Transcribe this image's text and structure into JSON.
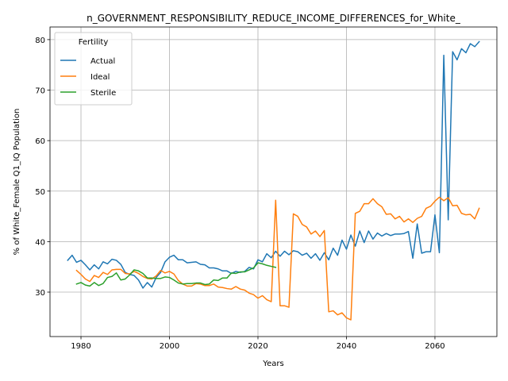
{
  "chart_data": {
    "type": "line",
    "title": "n_GOVERNMENT_RESPONSIBILITY_REDUCE_INCOME_DIFFERENCES_for_White_",
    "xlabel": "Years",
    "ylabel": "% of White_Female Q1_IQ Population",
    "xlim": [
      1973,
      2074
    ],
    "ylim": [
      21.2,
      82.5
    ],
    "xticks": [
      1980,
      2000,
      2020,
      2040,
      2060
    ],
    "yticks": [
      30,
      40,
      50,
      60,
      70,
      80
    ],
    "grid": true,
    "legend": {
      "title": "Fertility",
      "placement": "top-left"
    },
    "series": [
      {
        "name": "Actual",
        "color": "#1f77b4",
        "x": [
          1977,
          1978,
          1979,
          1980,
          1981,
          1982,
          1983,
          1984,
          1985,
          1986,
          1987,
          1988,
          1989,
          1990,
          1991,
          1992,
          1993,
          1994,
          1995,
          1996,
          1997,
          1998,
          1999,
          2000,
          2001,
          2002,
          2003,
          2004,
          2005,
          2006,
          2007,
          2008,
          2009,
          2010,
          2011,
          2012,
          2013,
          2014,
          2015,
          2016,
          2017,
          2018,
          2019,
          2020,
          2021,
          2022,
          2023,
          2024,
          2025,
          2026,
          2027,
          2028,
          2029,
          2030,
          2031,
          2032,
          2033,
          2034,
          2035,
          2036,
          2037,
          2038,
          2039,
          2040,
          2041,
          2042,
          2043,
          2044,
          2045,
          2046,
          2047,
          2048,
          2049,
          2050,
          2051,
          2052,
          2053,
          2054,
          2055,
          2056,
          2057,
          2058,
          2059,
          2060,
          2061,
          2062,
          2063,
          2064,
          2065,
          2066,
          2067,
          2068,
          2069,
          2070
        ],
        "values": [
          36.3,
          37.3,
          35.9,
          36.3,
          35.4,
          34.4,
          35.4,
          34.6,
          36.0,
          35.6,
          36.5,
          36.3,
          35.5,
          33.9,
          33.5,
          33.3,
          32.4,
          30.8,
          31.9,
          31.0,
          32.9,
          33.9,
          36.0,
          36.9,
          37.3,
          36.4,
          36.4,
          35.8,
          35.9,
          36.0,
          35.5,
          35.4,
          34.8,
          34.8,
          34.6,
          34.2,
          34.2,
          33.7,
          34.1,
          33.9,
          34.1,
          34.9,
          34.6,
          36.4,
          36.0,
          37.6,
          36.8,
          38.1,
          37.1,
          38.1,
          37.4,
          38.2,
          38.0,
          37.3,
          37.7,
          36.7,
          37.6,
          36.3,
          37.8,
          36.4,
          38.7,
          37.3,
          40.3,
          38.5,
          41.3,
          39.1,
          42.1,
          39.8,
          42.1,
          40.5,
          41.7,
          41.1,
          41.6,
          41.2,
          41.5,
          41.5,
          41.6,
          42.0,
          36.7,
          43.5,
          37.7,
          38.0,
          38.0,
          45.3,
          37.8,
          76.9,
          44.3,
          77.6,
          76.0,
          78.2,
          77.4,
          79.2,
          78.6,
          79.6
        ]
      },
      {
        "name": "Ideal",
        "color": "#ff7f0e",
        "x": [
          1979,
          1980,
          1981,
          1982,
          1983,
          1984,
          1985,
          1986,
          1987,
          1988,
          1989,
          1990,
          1991,
          1992,
          1993,
          1994,
          1995,
          1996,
          1997,
          1998,
          1999,
          2000,
          2001,
          2002,
          2003,
          2004,
          2005,
          2006,
          2007,
          2008,
          2009,
          2010,
          2011,
          2012,
          2013,
          2014,
          2015,
          2016,
          2017,
          2018,
          2019,
          2020,
          2021,
          2022,
          2023,
          2024,
          2025,
          2026,
          2027,
          2028,
          2029,
          2030,
          2031,
          2032,
          2033,
          2034,
          2035,
          2036,
          2037,
          2038,
          2039,
          2040,
          2041,
          2042,
          2043,
          2044,
          2045,
          2046,
          2047,
          2048,
          2049,
          2050,
          2051,
          2052,
          2053,
          2054,
          2055,
          2056,
          2057,
          2058,
          2059,
          2060,
          2061,
          2062,
          2063,
          2064,
          2065,
          2066,
          2067,
          2068,
          2069,
          2070
        ],
        "values": [
          34.3,
          33.5,
          32.6,
          32.1,
          33.3,
          32.9,
          33.9,
          33.5,
          34.4,
          34.5,
          34.5,
          33.7,
          33.6,
          34.1,
          33.7,
          33.1,
          32.7,
          32.6,
          33.2,
          34.3,
          33.8,
          34.1,
          33.6,
          32.3,
          31.6,
          31.2,
          31.2,
          31.7,
          31.6,
          31.3,
          31.3,
          31.6,
          31.0,
          30.9,
          30.7,
          30.6,
          31.1,
          30.6,
          30.4,
          29.8,
          29.5,
          28.8,
          29.3,
          28.5,
          28.1,
          48.2,
          27.3,
          27.3,
          27.0,
          45.5,
          45.0,
          43.4,
          42.9,
          41.5,
          42.1,
          41.0,
          42.2,
          26.1,
          26.3,
          25.5,
          25.9,
          24.9,
          24.5,
          45.6,
          46.0,
          47.5,
          47.5,
          48.5,
          47.5,
          46.9,
          45.4,
          45.5,
          44.5,
          45.0,
          43.9,
          44.5,
          43.8,
          44.6,
          45.0,
          46.6,
          47.0,
          48.0,
          48.8,
          48.1,
          48.7,
          47.1,
          47.2,
          45.6,
          45.3,
          45.4,
          44.5,
          46.6
        ]
      },
      {
        "name": "Sterile",
        "color": "#2ca02c",
        "x": [
          1979,
          1980,
          1981,
          1982,
          1983,
          1984,
          1985,
          1986,
          1987,
          1988,
          1989,
          1990,
          1991,
          1992,
          1993,
          1994,
          1995,
          1996,
          1997,
          1998,
          1999,
          2000,
          2001,
          2002,
          2003,
          2004,
          2005,
          2006,
          2007,
          2008,
          2009,
          2010,
          2011,
          2012,
          2013,
          2014,
          2015,
          2016,
          2017,
          2018,
          2019,
          2020,
          2021,
          2022,
          2023,
          2024
        ],
        "values": [
          31.6,
          31.9,
          31.4,
          31.2,
          31.9,
          31.3,
          31.7,
          32.9,
          33.1,
          33.8,
          32.4,
          32.6,
          33.4,
          34.4,
          34.2,
          33.7,
          32.8,
          32.8,
          32.7,
          32.7,
          33.0,
          32.9,
          32.4,
          31.8,
          31.6,
          31.7,
          31.7,
          31.8,
          31.8,
          31.5,
          31.6,
          32.4,
          32.3,
          32.8,
          32.8,
          33.8,
          33.7,
          34.0,
          34.0,
          34.4,
          34.8,
          35.8,
          35.6,
          35.3,
          35.1,
          34.9
        ]
      }
    ]
  }
}
